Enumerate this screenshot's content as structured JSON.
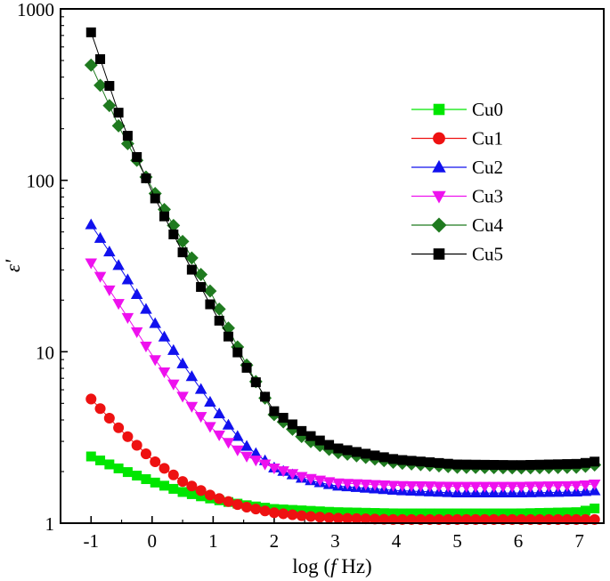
{
  "chart_data": {
    "type": "line",
    "title": "",
    "xlabel_prefix": "log (",
    "xlabel_italic": "f",
    "xlabel_suffix": " Hz)",
    "ylabel": "ε'",
    "xlim": [
      -1.5,
      7.4
    ],
    "ylim": [
      1,
      1000
    ],
    "yscale": "log",
    "x_ticks": [
      -1,
      0,
      1,
      2,
      3,
      4,
      5,
      6,
      7
    ],
    "x_tick_labels": [
      "-1",
      "0",
      "1",
      "2",
      "3",
      "4",
      "5",
      "6",
      "7"
    ],
    "y_ticks": [
      1,
      10,
      100,
      1000
    ],
    "y_tick_labels": [
      "1",
      "10",
      "100",
      "1000"
    ],
    "legend_position": "top-right",
    "series": [
      {
        "name": "Cu0",
        "color": "#00e600",
        "marker": "square",
        "points": [
          [
            -1.0,
            2.45
          ],
          [
            -0.5,
            2.05
          ],
          [
            0.0,
            1.75
          ],
          [
            0.5,
            1.52
          ],
          [
            1.0,
            1.38
          ],
          [
            1.5,
            1.28
          ],
          [
            2.0,
            1.21
          ],
          [
            3.0,
            1.16
          ],
          [
            4.0,
            1.14
          ],
          [
            5.0,
            1.14
          ],
          [
            6.0,
            1.14
          ],
          [
            7.0,
            1.16
          ],
          [
            7.3,
            1.23
          ]
        ]
      },
      {
        "name": "Cu1",
        "color": "#ee1111",
        "marker": "circle",
        "points": [
          [
            -1.0,
            5.3
          ],
          [
            -0.5,
            3.45
          ],
          [
            0.0,
            2.35
          ],
          [
            0.5,
            1.75
          ],
          [
            1.0,
            1.43
          ],
          [
            1.5,
            1.25
          ],
          [
            2.0,
            1.15
          ],
          [
            2.5,
            1.1
          ],
          [
            3.0,
            1.07
          ],
          [
            4.0,
            1.05
          ],
          [
            5.0,
            1.05
          ],
          [
            6.0,
            1.05
          ],
          [
            7.0,
            1.05
          ],
          [
            7.3,
            1.05
          ]
        ]
      },
      {
        "name": "Cu2",
        "color": "#1111ee",
        "marker": "triangle-up",
        "points": [
          [
            -1.0,
            55
          ],
          [
            -0.5,
            30
          ],
          [
            0.0,
            15.5
          ],
          [
            0.5,
            8.5
          ],
          [
            1.0,
            4.8
          ],
          [
            1.5,
            2.9
          ],
          [
            2.0,
            2.1
          ],
          [
            2.5,
            1.8
          ],
          [
            3.0,
            1.65
          ],
          [
            4.0,
            1.55
          ],
          [
            5.0,
            1.5
          ],
          [
            6.0,
            1.5
          ],
          [
            7.0,
            1.52
          ],
          [
            7.3,
            1.55
          ]
        ]
      },
      {
        "name": "Cu3",
        "color": "#ee11ee",
        "marker": "triangle-down",
        "points": [
          [
            -1.0,
            33
          ],
          [
            -0.5,
            18
          ],
          [
            0.0,
            9.5
          ],
          [
            0.5,
            5.5
          ],
          [
            1.0,
            3.5
          ],
          [
            1.5,
            2.5
          ],
          [
            2.0,
            2.1
          ],
          [
            2.5,
            1.85
          ],
          [
            3.0,
            1.72
          ],
          [
            4.0,
            1.66
          ],
          [
            5.0,
            1.64
          ],
          [
            6.0,
            1.64
          ],
          [
            7.0,
            1.66
          ],
          [
            7.3,
            1.7
          ]
        ]
      },
      {
        "name": "Cu4",
        "color": "#1f7a1f",
        "marker": "diamond",
        "points": [
          [
            -1.0,
            470
          ],
          [
            -0.5,
            190
          ],
          [
            0.0,
            90
          ],
          [
            0.5,
            44
          ],
          [
            1.0,
            21
          ],
          [
            1.5,
            9.0
          ],
          [
            2.0,
            4.3
          ],
          [
            2.5,
            3.1
          ],
          [
            3.0,
            2.6
          ],
          [
            4.0,
            2.25
          ],
          [
            5.0,
            2.12
          ],
          [
            6.0,
            2.1
          ],
          [
            7.0,
            2.12
          ],
          [
            7.3,
            2.2
          ]
        ]
      },
      {
        "name": "Cu5",
        "color": "#000000",
        "marker": "square",
        "points": [
          [
            -1.0,
            730
          ],
          [
            -0.5,
            220
          ],
          [
            0.0,
            85
          ],
          [
            0.5,
            38
          ],
          [
            1.0,
            17.5
          ],
          [
            1.5,
            8.6
          ],
          [
            2.0,
            4.5
          ],
          [
            2.5,
            3.35
          ],
          [
            3.0,
            2.75
          ],
          [
            4.0,
            2.35
          ],
          [
            5.0,
            2.2
          ],
          [
            6.0,
            2.18
          ],
          [
            7.0,
            2.22
          ],
          [
            7.3,
            2.3
          ]
        ]
      }
    ]
  }
}
